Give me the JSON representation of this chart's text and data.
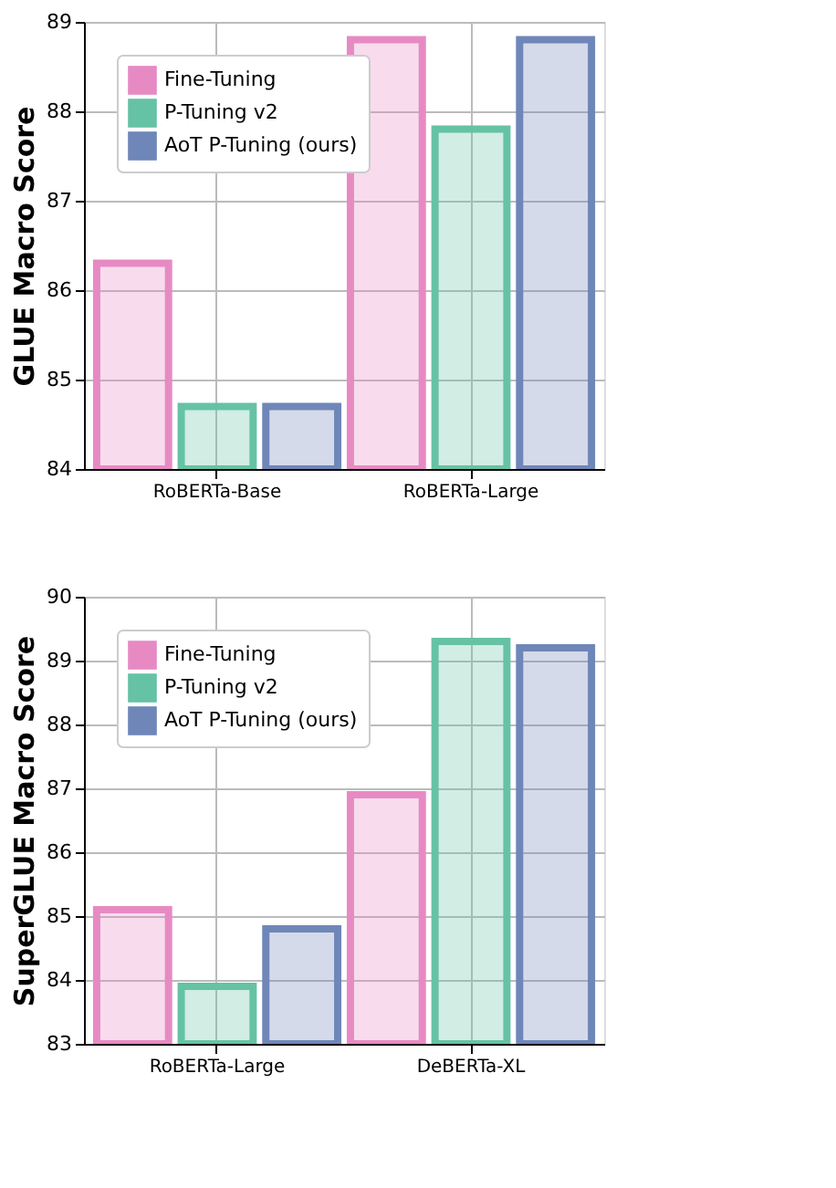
{
  "chart_data": [
    {
      "type": "bar",
      "ylabel": "GLUE Macro Score",
      "categories": [
        "RoBERTa-Base",
        "RoBERTa-Large"
      ],
      "series": [
        {
          "name": "Fine-Tuning",
          "color": "#e78ac3",
          "values": [
            86.3,
            88.8
          ]
        },
        {
          "name": "P-Tuning v2",
          "color": "#66c2a5",
          "values": [
            84.7,
            87.8
          ]
        },
        {
          "name": "AoT P-Tuning (ours)",
          "color": "#6f86b8",
          "values": [
            84.7,
            88.8
          ]
        }
      ],
      "ylim": [
        84,
        89
      ],
      "yticks": [
        84,
        85,
        86,
        87,
        88,
        89
      ],
      "grid": true,
      "legend": "top left"
    },
    {
      "type": "bar",
      "ylabel": "SuperGLUE Macro Score",
      "categories": [
        "RoBERTa-Large",
        "DeBERTa-XL"
      ],
      "series": [
        {
          "name": "Fine-Tuning",
          "color": "#e78ac3",
          "values": [
            85.1,
            86.9
          ]
        },
        {
          "name": "P-Tuning v2",
          "color": "#66c2a5",
          "values": [
            83.9,
            89.3
          ]
        },
        {
          "name": "AoT P-Tuning (ours)",
          "color": "#6f86b8",
          "values": [
            84.8,
            89.2
          ]
        }
      ],
      "ylim": [
        83,
        90
      ],
      "yticks": [
        83,
        84,
        85,
        86,
        87,
        88,
        89,
        90
      ],
      "grid": true,
      "legend": "top left"
    }
  ]
}
